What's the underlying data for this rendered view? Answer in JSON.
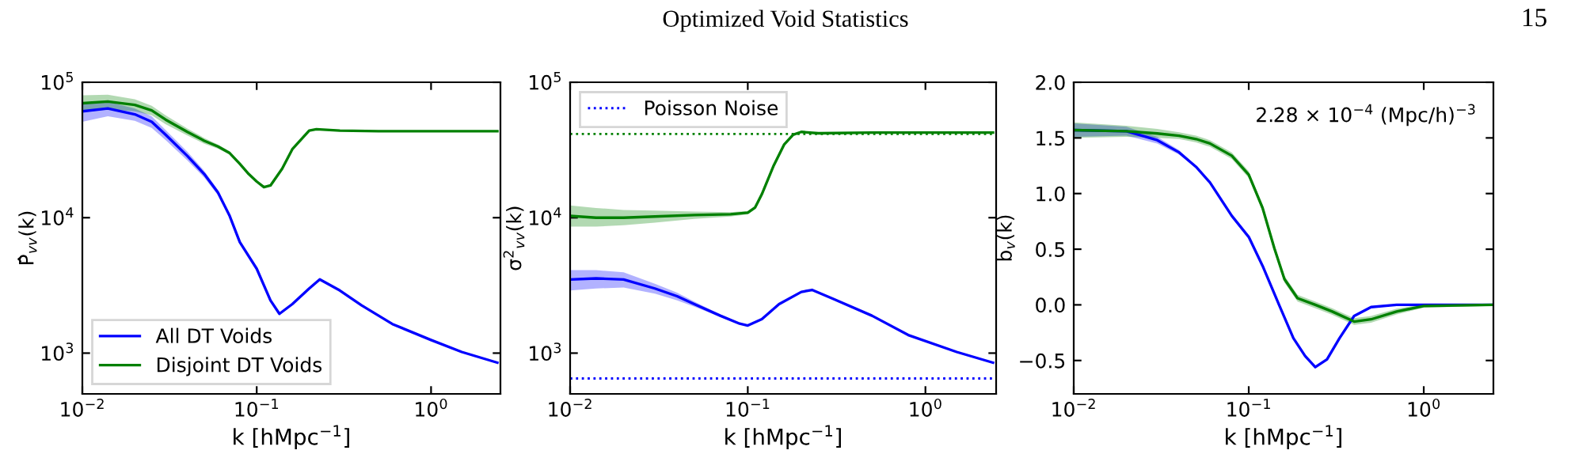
{
  "chart_data": [
    {
      "type": "line",
      "xlabel": "k [hMpc$^{−1}$]",
      "ylabel": "P̂$_{vv}$(k)",
      "log": "xy",
      "xlim": [
        0.01,
        2.5
      ],
      "ylim": [
        500,
        100000
      ],
      "xticks": [
        {
          "value": 0.01,
          "label": "10$^{−2}$"
        },
        {
          "value": 0.1,
          "label": "10$^{−1}$"
        },
        {
          "value": 1,
          "label": "10$^{0}$"
        }
      ],
      "yticks": [
        {
          "value": 1000,
          "label": "10$^{3}$"
        },
        {
          "value": 10000,
          "label": "10$^{4}$"
        },
        {
          "value": 100000,
          "label": "10$^{5}$"
        }
      ],
      "legend": "bottom left",
      "grid": false,
      "annotations": [
        "Optimized Void Statistics",
        "15"
      ],
      "series": [
        {
          "name": "All DT Voids",
          "color": "#0000ff",
          "x": [
            0.01,
            0.014,
            0.02,
            0.025,
            0.03,
            0.04,
            0.05,
            0.06,
            0.07,
            0.08,
            0.1,
            0.12,
            0.135,
            0.16,
            0.2,
            0.23,
            0.3,
            0.4,
            0.6,
            1.0,
            1.5,
            2.4
          ],
          "values": [
            61000,
            64000,
            58000,
            51000,
            41000,
            28600,
            21000,
            15300,
            10300,
            6600,
            4200,
            2450,
            1950,
            2300,
            3000,
            3500,
            2900,
            2250,
            1640,
            1250,
            1020,
            850
          ],
          "lower": [
            51000,
            56000,
            52000,
            46000,
            37500,
            26500,
            19800,
            14600,
            10000,
            6500,
            4150,
            2430,
            1940,
            2290,
            2990,
            3490,
            2890,
            2245,
            1636,
            1248,
            1018,
            849
          ],
          "upper": [
            71000,
            72000,
            64000,
            56000,
            44500,
            30700,
            22200,
            16000,
            10600,
            6700,
            4250,
            2470,
            1960,
            2310,
            3010,
            3510,
            2910,
            2255,
            1644,
            1252,
            1022,
            851
          ]
        },
        {
          "name": "Disjoint DT Voids",
          "color": "#008000",
          "x": [
            0.01,
            0.014,
            0.02,
            0.025,
            0.03,
            0.04,
            0.05,
            0.06,
            0.07,
            0.08,
            0.09,
            0.1,
            0.11,
            0.12,
            0.14,
            0.16,
            0.2,
            0.22,
            0.3,
            0.5,
            1.0,
            2.4
          ],
          "values": [
            70000,
            72000,
            68000,
            62000,
            53000,
            43000,
            37000,
            33500,
            30000,
            25000,
            21000,
            18500,
            16800,
            17300,
            23000,
            32000,
            44000,
            45000,
            44000,
            43500,
            43500,
            43500
          ],
          "lower": [
            60000,
            63000,
            61000,
            57000,
            49000,
            40500,
            35200,
            32300,
            29200,
            24500,
            20700,
            18300,
            16650,
            17150,
            22800,
            31700,
            43700,
            44800,
            43850,
            43400,
            43450,
            43450
          ],
          "upper": [
            80000,
            81000,
            75000,
            67000,
            57000,
            45500,
            38800,
            34700,
            30800,
            25500,
            21300,
            18700,
            16950,
            17450,
            23200,
            32300,
            44300,
            45200,
            44150,
            43600,
            43550,
            43550
          ]
        }
      ]
    },
    {
      "type": "line",
      "xlabel": "k [hMpc$^{−1}$]",
      "ylabel": "σ$^{2}$$_{vv}$(k)",
      "log": "xy",
      "xlim": [
        0.01,
        2.5
      ],
      "ylim": [
        500,
        100000
      ],
      "xticks": [
        {
          "value": 0.01,
          "label": "10$^{−2}$"
        },
        {
          "value": 0.1,
          "label": "10$^{−1}$"
        },
        {
          "value": 1,
          "label": "10$^{0}$"
        }
      ],
      "yticks": [
        {
          "value": 1000,
          "label": "10$^{3}$"
        },
        {
          "value": 10000,
          "label": "10$^{4}$"
        },
        {
          "value": 100000,
          "label": "10$^{5}$"
        }
      ],
      "legend": "top left",
      "grid": false,
      "ref_lines": [
        {
          "axis": "y",
          "value": 41500,
          "color": "#008000",
          "line_style": "dotted"
        },
        {
          "axis": "y",
          "value": 650,
          "color": "#0000ff",
          "line_style": "dotted",
          "label": "Poisson Noise"
        }
      ],
      "series": [
        {
          "color": "#0000ff",
          "x": [
            0.01,
            0.014,
            0.02,
            0.03,
            0.04,
            0.05,
            0.07,
            0.09,
            0.1,
            0.12,
            0.15,
            0.2,
            0.23,
            0.3,
            0.5,
            0.8,
            1.5,
            2.4
          ],
          "values": [
            3500,
            3560,
            3500,
            3000,
            2630,
            2300,
            1890,
            1650,
            1600,
            1780,
            2300,
            2830,
            2930,
            2530,
            1890,
            1360,
            1020,
            850
          ],
          "lower": [
            2900,
            3000,
            3050,
            2750,
            2450,
            2200,
            1850,
            1630,
            1590,
            1770,
            2290,
            2820,
            2920,
            2520,
            1886,
            1358,
            1019,
            849
          ],
          "upper": [
            4100,
            4100,
            3950,
            3250,
            2800,
            2400,
            1930,
            1670,
            1610,
            1790,
            2310,
            2840,
            2940,
            2540,
            1894,
            1362,
            1021,
            851
          ]
        },
        {
          "color": "#008000",
          "x": [
            0.01,
            0.014,
            0.02,
            0.03,
            0.05,
            0.08,
            0.1,
            0.11,
            0.12,
            0.14,
            0.16,
            0.18,
            0.2,
            0.25,
            0.5,
            1.0,
            2.4
          ],
          "values": [
            10300,
            10000,
            10000,
            10200,
            10450,
            10600,
            10900,
            11900,
            14900,
            24300,
            34600,
            41000,
            43000,
            42000,
            42500,
            42500,
            42500
          ],
          "lower": [
            8600,
            8600,
            8800,
            9200,
            9800,
            10200,
            10600,
            11600,
            14600,
            23900,
            34200,
            40600,
            42600,
            41700,
            42300,
            42400,
            42450
          ],
          "upper": [
            12300,
            11800,
            11400,
            11300,
            11100,
            11000,
            11200,
            12200,
            15200,
            24700,
            35000,
            41400,
            43400,
            42300,
            42700,
            42600,
            42550
          ]
        }
      ]
    },
    {
      "type": "line",
      "xlabel": "k [hMpc$^{−1}$]",
      "ylabel": "b$_{v}$(k)",
      "log": "x",
      "xlim": [
        0.01,
        2.5
      ],
      "ylim": [
        -0.8,
        2.0
      ],
      "xticks": [
        {
          "value": 0.01,
          "label": "10$^{−2}$"
        },
        {
          "value": 0.1,
          "label": "10$^{−1}$"
        },
        {
          "value": 1,
          "label": "10$^{0}$"
        }
      ],
      "yticks": [
        {
          "value": -0.5,
          "label": "−0.5"
        },
        {
          "value": 0,
          "label": "0.0"
        },
        {
          "value": 0.5,
          "label": "0.5"
        },
        {
          "value": 1,
          "label": "1.0"
        },
        {
          "value": 1.5,
          "label": "1.5"
        },
        {
          "value": 2,
          "label": "2.0"
        }
      ],
      "grid": false,
      "annotations": [
        "2.28 × 10$^{−4}$ (Mpc/h)$^{−3}$"
      ],
      "series": [
        {
          "color": "#0000ff",
          "x": [
            0.01,
            0.02,
            0.03,
            0.04,
            0.05,
            0.06,
            0.08,
            0.1,
            0.12,
            0.15,
            0.18,
            0.21,
            0.24,
            0.28,
            0.33,
            0.4,
            0.5,
            0.7,
            2.5
          ],
          "values": [
            1.57,
            1.56,
            1.48,
            1.37,
            1.24,
            1.1,
            0.8,
            0.61,
            0.35,
            -0.01,
            -0.3,
            -0.46,
            -0.56,
            -0.49,
            -0.3,
            -0.1,
            -0.02,
            0,
            0
          ],
          "lower": [
            1.51,
            1.52,
            1.45,
            1.35,
            1.23,
            1.09,
            0.795,
            0.605,
            0.345,
            -0.015,
            -0.305,
            -0.465,
            -0.565,
            -0.495,
            -0.305,
            -0.105,
            -0.025,
            -0.005,
            -0.003
          ],
          "upper": [
            1.63,
            1.6,
            1.51,
            1.39,
            1.25,
            1.11,
            0.805,
            0.615,
            0.355,
            -0.005,
            -0.295,
            -0.455,
            -0.555,
            -0.485,
            -0.295,
            -0.095,
            -0.015,
            0.005,
            0.003
          ]
        },
        {
          "color": "#008000",
          "x": [
            0.01,
            0.02,
            0.03,
            0.04,
            0.05,
            0.06,
            0.08,
            0.1,
            0.12,
            0.14,
            0.16,
            0.19,
            0.24,
            0.3,
            0.4,
            0.5,
            0.7,
            1.0,
            2.5
          ],
          "values": [
            1.57,
            1.56,
            1.54,
            1.52,
            1.49,
            1.45,
            1.34,
            1.17,
            0.87,
            0.51,
            0.23,
            0.06,
            0,
            -0.06,
            -0.15,
            -0.13,
            -0.06,
            -0.01,
            0
          ],
          "lower": [
            1.5,
            1.51,
            1.5,
            1.49,
            1.46,
            1.42,
            1.31,
            1.14,
            0.84,
            0.48,
            0.2,
            0.03,
            -0.03,
            -0.09,
            -0.18,
            -0.16,
            -0.085,
            -0.025,
            -0.01
          ],
          "upper": [
            1.64,
            1.61,
            1.58,
            1.55,
            1.52,
            1.48,
            1.37,
            1.2,
            0.9,
            0.54,
            0.26,
            0.09,
            0.03,
            -0.03,
            -0.12,
            -0.1,
            -0.035,
            0.005,
            0.01
          ]
        }
      ]
    }
  ]
}
